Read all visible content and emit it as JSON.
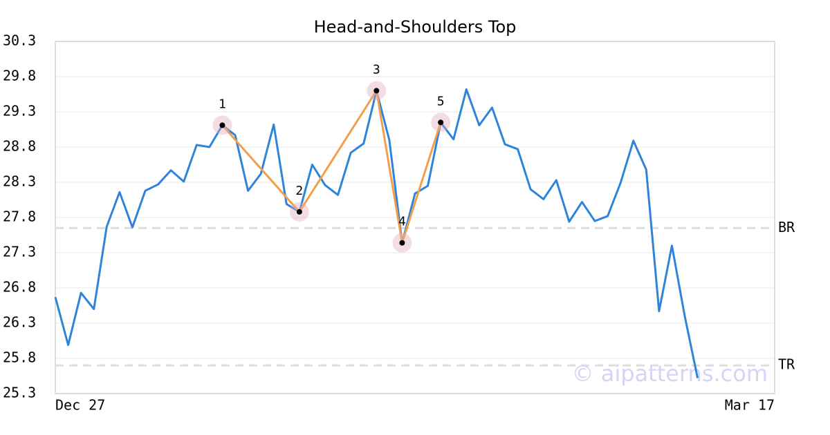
{
  "chart_data": {
    "type": "line",
    "title": "Head-and-Shoulders Top",
    "categories": [
      "Dec 27",
      null,
      null,
      null,
      null,
      null,
      null,
      null,
      null,
      null,
      null,
      null,
      null,
      null,
      null,
      null,
      null,
      null,
      null,
      null,
      null,
      null,
      null,
      null,
      null,
      null,
      null,
      null,
      null,
      null,
      null,
      null,
      null,
      null,
      null,
      null,
      null,
      null,
      null,
      null,
      null,
      null,
      null,
      null,
      null,
      null,
      null,
      null,
      null,
      null,
      null,
      null,
      null,
      null,
      null,
      null,
      "Mar 17"
    ],
    "series": [
      {
        "color": "#2f83db",
        "values": [
          26.67,
          25.99,
          26.73,
          26.5,
          27.67,
          28.16,
          27.66,
          28.18,
          28.27,
          28.47,
          28.31,
          28.83,
          28.8,
          29.11,
          28.97,
          28.18,
          28.42,
          29.12,
          27.99,
          27.88,
          28.55,
          28.26,
          28.12,
          28.72,
          28.85,
          29.6,
          28.9,
          27.44,
          28.14,
          28.25,
          29.15,
          28.91,
          29.62,
          29.11,
          29.36,
          28.84,
          28.77,
          28.2,
          28.06,
          28.33,
          27.74,
          28.02,
          27.75,
          27.82,
          28.29,
          28.89,
          28.48,
          26.47,
          27.4,
          26.4,
          25.52,
          null,
          null,
          null,
          null,
          null,
          null
        ]
      }
    ],
    "pattern": {
      "color": "#f29e4c",
      "values": [
        null,
        null,
        null,
        null,
        null,
        null,
        null,
        null,
        null,
        null,
        null,
        null,
        null,
        29.11,
        null,
        null,
        null,
        null,
        null,
        27.88,
        null,
        null,
        null,
        null,
        null,
        29.6,
        null,
        27.44,
        null,
        null,
        29.15,
        null,
        null,
        null,
        null,
        null,
        null,
        null,
        null,
        null,
        null,
        null,
        null,
        null,
        null,
        null,
        null,
        null,
        null,
        null,
        null,
        null,
        null,
        null,
        null,
        null,
        null
      ],
      "labels": [
        null,
        null,
        null,
        null,
        null,
        null,
        null,
        null,
        null,
        null,
        null,
        null,
        null,
        "1",
        null,
        null,
        null,
        null,
        null,
        "2",
        null,
        null,
        null,
        null,
        null,
        "3",
        null,
        "4",
        null,
        null,
        "5",
        null,
        null,
        null,
        null,
        null,
        null,
        null,
        null,
        null,
        null,
        null,
        null,
        null,
        null,
        null,
        null,
        null,
        null,
        null,
        null,
        null,
        null,
        null,
        null,
        null,
        null
      ]
    },
    "reference_lines": [
      {
        "label": "BR",
        "value": 27.65
      },
      {
        "label": "TR",
        "value": 25.7
      }
    ],
    "watermark": "© aipatterns.com",
    "ylim": [
      25.3,
      30.3
    ],
    "yticks": [
      25.3,
      25.8,
      26.3,
      26.8,
      27.3,
      27.8,
      28.3,
      28.8,
      29.3,
      29.8,
      30.3
    ],
    "grid": true
  }
}
